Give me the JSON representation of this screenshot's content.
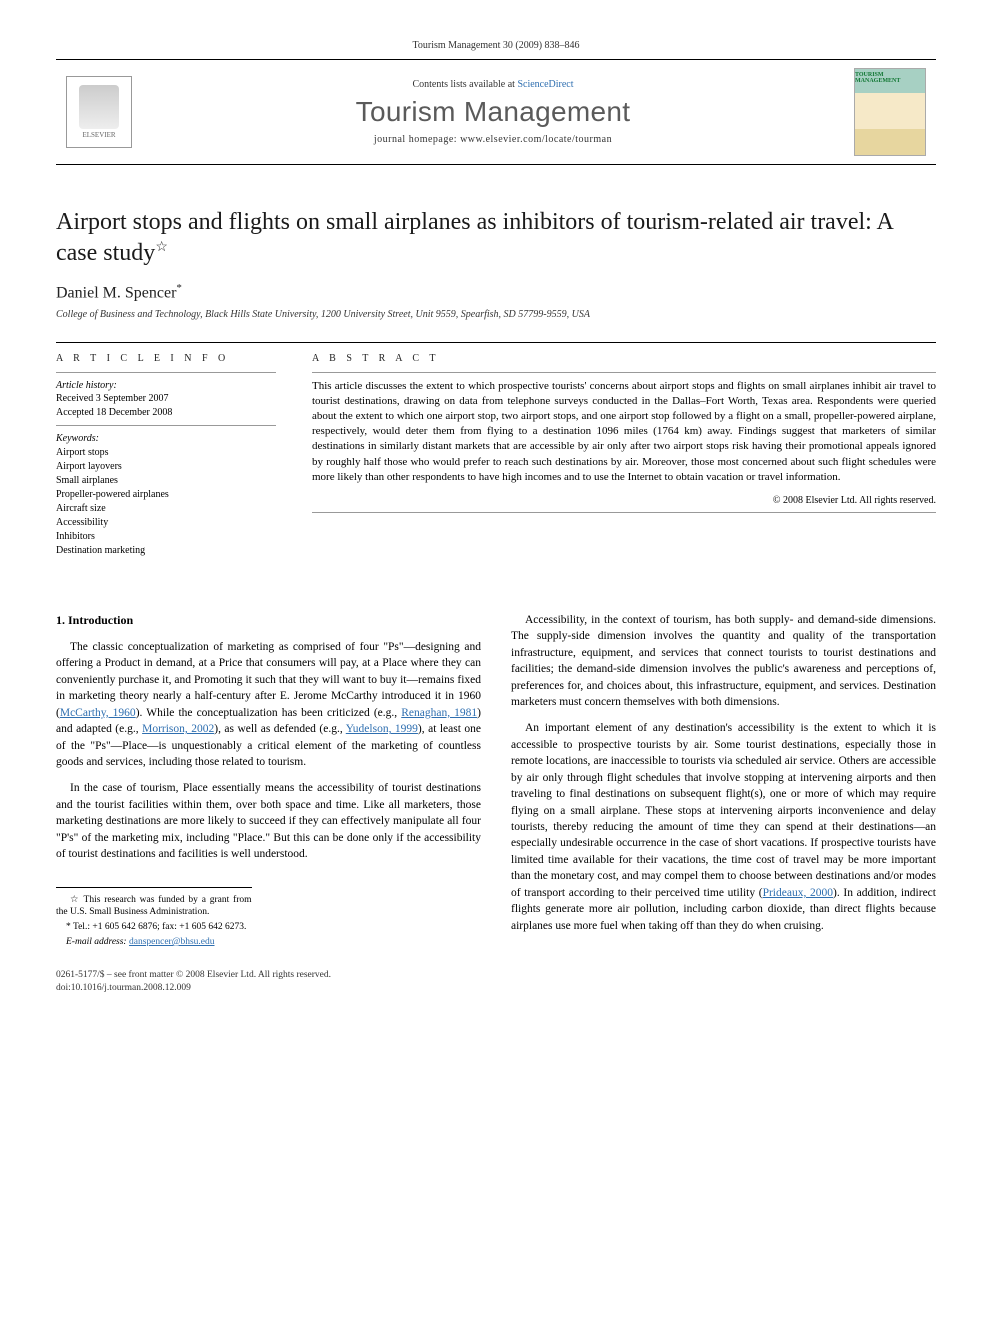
{
  "header": {
    "citation": "Tourism Management 30 (2009) 838–846",
    "contents_prefix": "Contents lists available at ",
    "contents_link": "ScienceDirect",
    "journal": "Tourism Management",
    "homepage": "journal homepage: www.elsevier.com/locate/tourman",
    "publisher_logo": "ELSEVIER",
    "cover_tag": "TOURISM MANAGEMENT"
  },
  "article": {
    "title": "Airport stops and flights on small airplanes as inhibitors of tourism-related air travel: A case study",
    "title_mark": "☆",
    "author": "Daniel M. Spencer",
    "author_mark": "*",
    "affiliation": "College of Business and Technology, Black Hills State University, 1200 University Street, Unit 9559, Spearfish, SD 57799-9559, USA"
  },
  "info": {
    "heading": "A R T I C L E   I N F O",
    "history_label": "Article history:",
    "received": "Received 3 September 2007",
    "accepted": "Accepted 18 December 2008",
    "keywords_label": "Keywords:",
    "keywords": [
      "Airport stops",
      "Airport layovers",
      "Small airplanes",
      "Propeller-powered airplanes",
      "Aircraft size",
      "Accessibility",
      "Inhibitors",
      "Destination marketing"
    ]
  },
  "abstract": {
    "heading": "A B S T R A C T",
    "text": "This article discusses the extent to which prospective tourists' concerns about airport stops and flights on small airplanes inhibit air travel to tourist destinations, drawing on data from telephone surveys conducted in the Dallas–Fort Worth, Texas area. Respondents were queried about the extent to which one airport stop, two airport stops, and one airport stop followed by a flight on a small, propeller-powered airplane, respectively, would deter them from flying to a destination 1096 miles (1764 km) away. Findings suggest that marketers of similar destinations in similarly distant markets that are accessible by air only after two airport stops risk having their promotional appeals ignored by roughly half those who would prefer to reach such destinations by air. Moreover, those most concerned about such flight schedules were more likely than other respondents to have high incomes and to use the Internet to obtain vacation or travel information.",
    "copyright": "© 2008 Elsevier Ltd. All rights reserved."
  },
  "section1": {
    "title": "1. Introduction",
    "p1a": "The classic conceptualization of marketing as comprised of four \"Ps\"—designing and offering a Product in demand, at a Price that consumers will pay, at a Place where they can conveniently purchase it, and Promoting it such that they will want to buy it—remains fixed in marketing theory nearly a half-century after E. Jerome McCarthy introduced it in 1960 (",
    "r1": "McCarthy, 1960",
    "p1b": "). While the conceptualization has been criticized (e.g., ",
    "r2": "Renaghan, 1981",
    "p1c": ") and adapted (e.g., ",
    "r3": "Morrison, 2002",
    "p1d": "), as well as defended (e.g., ",
    "r4": "Yudelson, 1999",
    "p1e": "), at least one of the \"Ps\"—Place—is unquestionably a critical element of the marketing of countless goods and services, including those related to tourism.",
    "p2": "In the case of tourism, Place essentially means the accessibility of tourist destinations and the tourist facilities within them, over both space and time. Like all marketers, those marketing destinations are more likely to succeed if they can effectively manipulate all four \"P's\" of the marketing mix, including \"Place.\" But this can be done only if the accessibility of tourist destinations and facilities is well understood.",
    "p3": "Accessibility, in the context of tourism, has both supply- and demand-side dimensions. The supply-side dimension involves the quantity and quality of the transportation infrastructure, equipment, and services that connect tourists to tourist destinations and facilities; the demand-side dimension involves the public's awareness and perceptions of, preferences for, and choices about, this infrastructure, equipment, and services. Destination marketers must concern themselves with both dimensions.",
    "p4a": "An important element of any destination's accessibility is the extent to which it is accessible to prospective tourists by air. Some tourist destinations, especially those in remote locations, are inaccessible to tourists via scheduled air service. Others are accessible by air only through flight schedules that involve stopping at intervening airports and then traveling to final destinations on subsequent flight(s), one or more of which may require flying on a small airplane. These stops at intervening airports inconvenience and delay tourists, thereby reducing the amount of time they can spend at their destinations—an especially undesirable occurrence in the case of short vacations. If prospective tourists have limited time available for their vacations, the time cost of travel may be more important than the monetary cost, and may compel them to choose between destinations and/or modes of transport according to their perceived time utility (",
    "r5": "Prideaux, 2000",
    "p4b": "). In addition, indirect flights generate more air pollution, including carbon dioxide, than direct flights because airplanes use more fuel when taking off than they do when cruising."
  },
  "footnotes": {
    "f1": "☆ This research was funded by a grant from the U.S. Small Business Administration.",
    "f2": "* Tel.: +1 605 642 6876; fax: +1 605 642 6273.",
    "f3_label": "E-mail address: ",
    "f3_email": "danspencer@bhsu.edu"
  },
  "footer": {
    "line1": "0261-5177/$ – see front matter © 2008 Elsevier Ltd. All rights reserved.",
    "line2": "doi:10.1016/j.tourman.2008.12.009"
  }
}
